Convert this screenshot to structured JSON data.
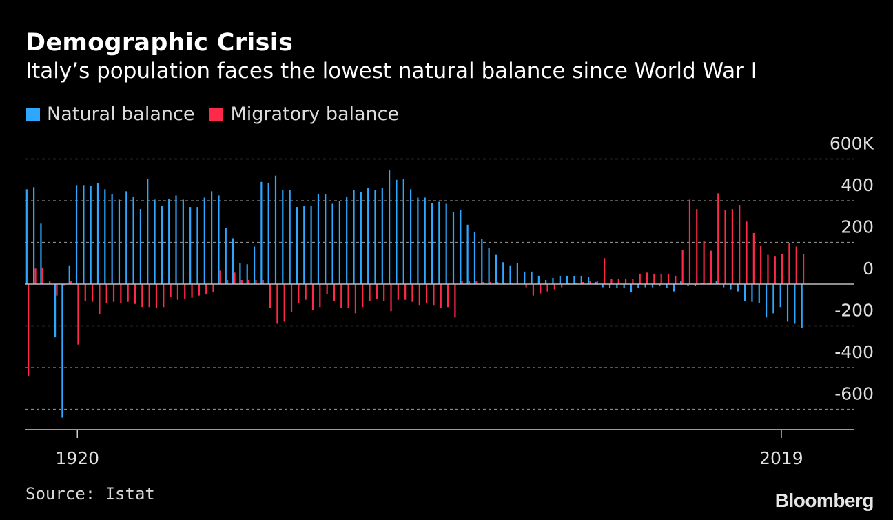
{
  "header": {
    "title": "Demographic Crisis",
    "subtitle": "Italy’s population faces the lowest natural balance since World War I"
  },
  "legend": [
    {
      "label": "Natural balance",
      "color": "#2ea8ff"
    },
    {
      "label": "Migratory balance",
      "color": "#ff2a4a"
    }
  ],
  "footer": {
    "source": "Source: Istat",
    "brand": "Bloomberg"
  },
  "chart_data": {
    "type": "bar",
    "title": "Demographic Crisis",
    "subtitle": "Italy’s population faces the lowest natural balance since World War I",
    "xlabel": "",
    "ylabel": "",
    "x_start": 1913,
    "x_end": 2019,
    "x_tick_labels": [
      "1920",
      "2019"
    ],
    "x_tick_values": [
      1920,
      2019
    ],
    "y_tick_labels": [
      "600K",
      "400",
      "200",
      "0",
      "-200",
      "-400",
      "-600"
    ],
    "y_tick_values": [
      600,
      400,
      200,
      0,
      -200,
      -400,
      -600
    ],
    "ylim": [
      -640,
      600
    ],
    "unit": "thousands",
    "grid": true,
    "legend_position": "top-left",
    "series": [
      {
        "name": "Natural balance",
        "color": "#2ea8ff",
        "values": [
          455,
          465,
          290,
          0,
          -255,
          -640,
          90,
          475,
          475,
          470,
          485,
          455,
          430,
          405,
          445,
          420,
          360,
          505,
          405,
          375,
          410,
          425,
          405,
          370,
          370,
          415,
          445,
          425,
          270,
          220,
          100,
          95,
          180,
          490,
          485,
          520,
          450,
          450,
          370,
          375,
          375,
          430,
          430,
          385,
          400,
          420,
          450,
          440,
          460,
          450,
          460,
          545,
          500,
          505,
          455,
          415,
          415,
          390,
          395,
          385,
          345,
          355,
          285,
          250,
          215,
          175,
          140,
          105,
          90,
          100,
          60,
          60,
          40,
          20,
          30,
          40,
          40,
          40,
          40,
          35,
          10,
          -15,
          -20,
          -20,
          -20,
          -40,
          -20,
          -15,
          -15,
          -10,
          -20,
          -35,
          15,
          -10,
          -10,
          5,
          5,
          15,
          -15,
          -25,
          -35,
          -80,
          -85,
          -90,
          -160,
          -140,
          -110,
          -180,
          -190,
          -210
        ]
      },
      {
        "name": "Migratory balance",
        "color": "#ff2a4a",
        "values": [
          -440,
          75,
          80,
          15,
          -55,
          -5,
          15,
          -290,
          -80,
          -85,
          -145,
          -90,
          -85,
          -90,
          -85,
          -95,
          -110,
          -110,
          -115,
          -110,
          -60,
          -75,
          -70,
          -65,
          -55,
          -50,
          -40,
          65,
          20,
          55,
          20,
          20,
          20,
          20,
          -115,
          -190,
          -180,
          -135,
          -90,
          -75,
          -125,
          -110,
          -50,
          -80,
          -115,
          -115,
          -140,
          -110,
          -80,
          -70,
          -80,
          -130,
          -75,
          -75,
          -85,
          -100,
          -90,
          -100,
          -115,
          -110,
          -160,
          15,
          15,
          15,
          10,
          10,
          10,
          5,
          5,
          0,
          -15,
          -55,
          -45,
          -35,
          -25,
          -15,
          5,
          5,
          10,
          15,
          15,
          125,
          25,
          25,
          25,
          25,
          50,
          55,
          50,
          50,
          50,
          40,
          165,
          405,
          360,
          205,
          160,
          435,
          355,
          360,
          380,
          300,
          245,
          185,
          140,
          135,
          145,
          195,
          180,
          145
        ]
      }
    ]
  }
}
